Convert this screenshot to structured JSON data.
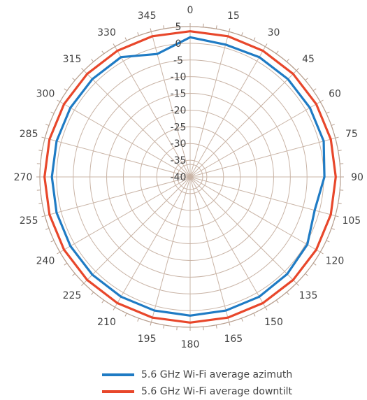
{
  "chart_data": {
    "type": "polar-line",
    "title": "",
    "angle_labels": [
      "0",
      "15",
      "30",
      "45",
      "60",
      "75",
      "90",
      "105",
      "120",
      "135",
      "150",
      "165",
      "180",
      "195",
      "210",
      "225",
      "240",
      "255",
      "270",
      "285",
      "300",
      "315",
      "330",
      "345"
    ],
    "angles": [
      0,
      15,
      30,
      45,
      60,
      75,
      90,
      105,
      120,
      135,
      150,
      165,
      180,
      195,
      210,
      225,
      240,
      255,
      270,
      285,
      300,
      315,
      330,
      345
    ],
    "radial_ticks": [
      "5",
      "0",
      "-5",
      "-10",
      "-15",
      "-20",
      "-25",
      "-30",
      "-35",
      "-40"
    ],
    "radial_range": [
      -40,
      5
    ],
    "grid": true,
    "legend_position": "bottom",
    "series": [
      {
        "name": "5.6 GHz Wi-Fi average azimuth",
        "color": "#1f7bc4",
        "values": [
          1.8,
          1.0,
          1.4,
          1.4,
          1.4,
          1.4,
          0.2,
          -1.4,
          0.5,
          1.1,
          1.4,
          1.4,
          1.5,
          1.4,
          1.4,
          1.4,
          1.4,
          1.4,
          1.4,
          1.4,
          1.4,
          1.4,
          1.4,
          -1.9
        ]
      },
      {
        "name": "5.6 GHz Wi-Fi average downtilt",
        "color": "#e8472b",
        "values": [
          3.6,
          3.6,
          3.6,
          3.6,
          3.6,
          3.6,
          3.6,
          3.6,
          3.6,
          3.6,
          3.6,
          3.6,
          3.6,
          3.6,
          3.6,
          3.6,
          3.6,
          3.6,
          3.6,
          3.6,
          3.6,
          3.6,
          3.6,
          3.6
        ]
      }
    ]
  }
}
